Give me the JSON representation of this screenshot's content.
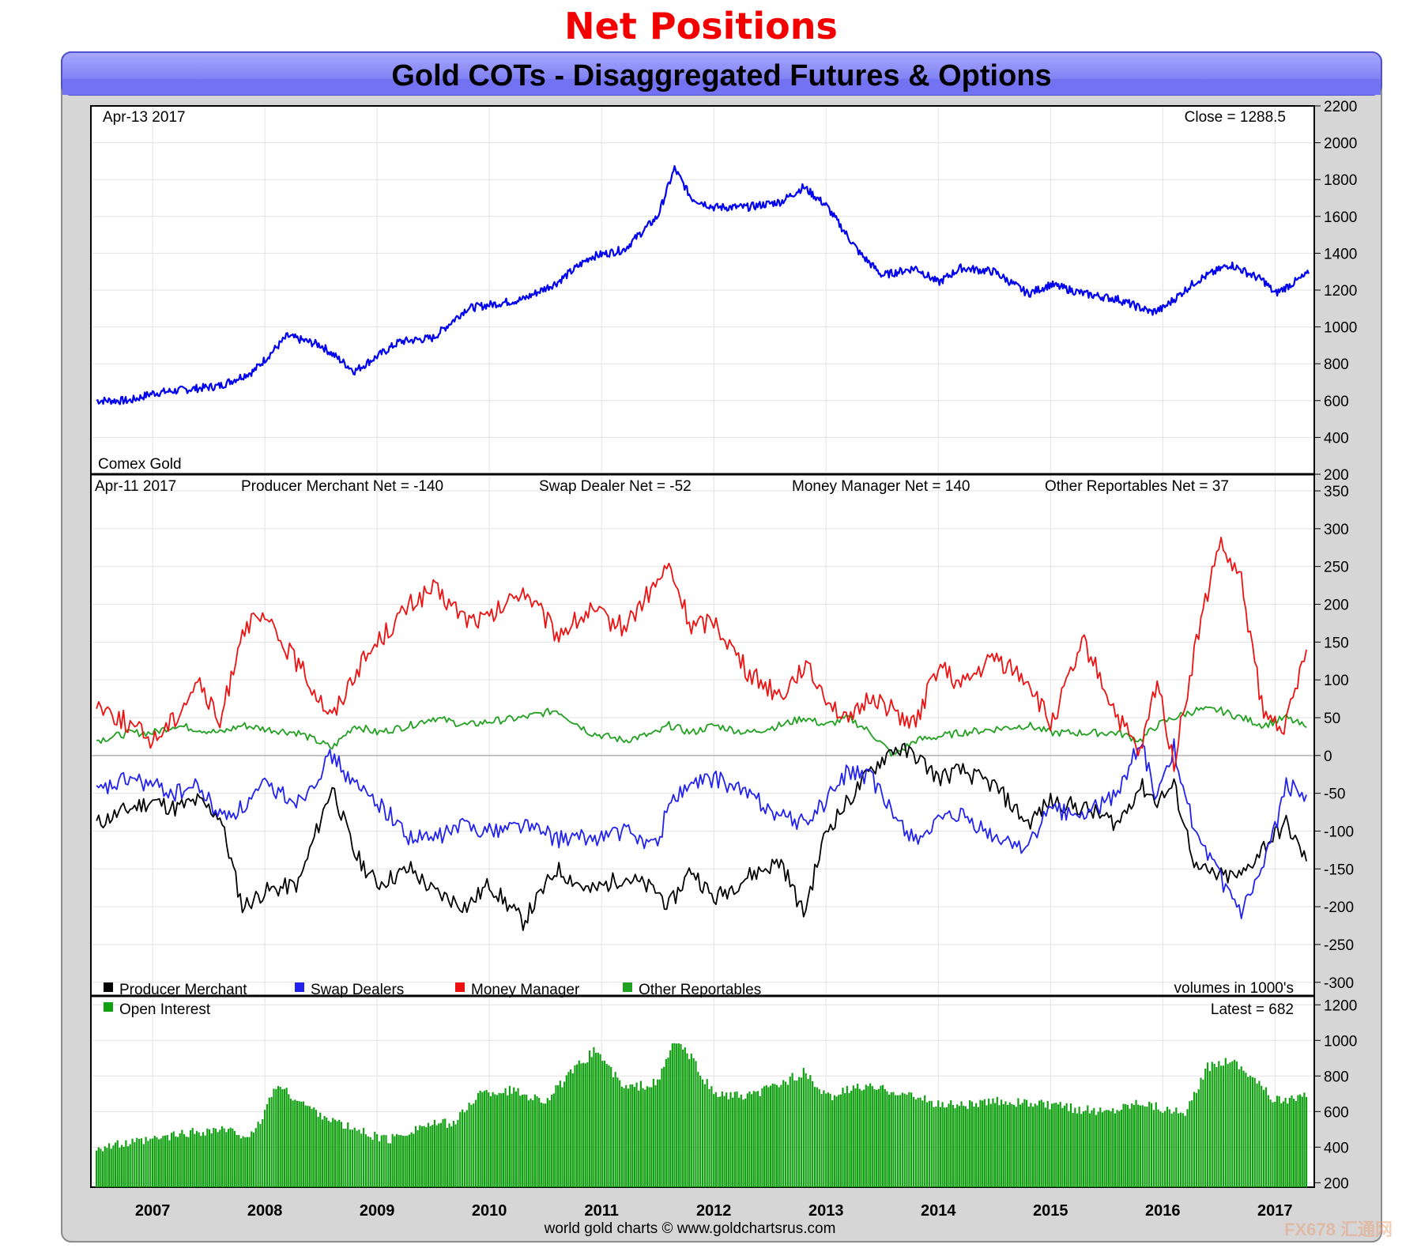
{
  "heading": "Net Positions",
  "banner_title": "Gold COTs - Disaggregated Futures & Options",
  "footer": "world gold charts © www.goldchartsrus.com",
  "watermark": "FX678 汇通网",
  "x_years": [
    "2007",
    "2008",
    "2009",
    "2010",
    "2011",
    "2012",
    "2013",
    "2014",
    "2015",
    "2016",
    "2017"
  ],
  "colors": {
    "price": "#0000ee",
    "producer": "#000000",
    "swap": "#2222ee",
    "money": "#ee1111",
    "other": "#22a022",
    "oi": "#11a011",
    "banner": "#7a7af5"
  },
  "price_panel": {
    "date": "Apr-13  2017",
    "close_label": "Close = 1288.5",
    "name": "Comex Gold",
    "y_ticks": [
      2200,
      2000,
      1800,
      1600,
      1400,
      1200,
      1000,
      800,
      600,
      400,
      200
    ]
  },
  "net_panel": {
    "date": "Apr-11  2017",
    "producer_label": "Producer Merchant Net = -140",
    "swap_label": "Swap Dealer Net = -52",
    "money_label": "Money Manager Net = 140",
    "other_label": "Other Reportables Net = 37",
    "legend": [
      "Producer Merchant",
      "Swap Dealers",
      "Money Manager",
      "Other Reportables"
    ],
    "units": "volumes in 1000's",
    "y_ticks": [
      350,
      300,
      250,
      200,
      150,
      100,
      50,
      0,
      -50,
      -100,
      -150,
      -200,
      -250,
      -300
    ]
  },
  "oi_panel": {
    "legend": "Open Interest",
    "latest_label": "Latest = 682",
    "y_ticks": [
      1200,
      1000,
      800,
      600,
      400,
      200
    ]
  },
  "chart_data": [
    {
      "type": "line",
      "title": "Comex Gold",
      "series": [
        {
          "name": "Comex Gold",
          "x": [
            2006.5,
            2006.8,
            2007.0,
            2007.3,
            2007.6,
            2007.9,
            2008.2,
            2008.5,
            2008.8,
            2008.9,
            2009.2,
            2009.5,
            2009.8,
            2010.0,
            2010.3,
            2010.6,
            2010.9,
            2011.2,
            2011.5,
            2011.65,
            2011.8,
            2012.0,
            2012.3,
            2012.6,
            2012.8,
            2013.0,
            2013.3,
            2013.5,
            2013.8,
            2014.0,
            2014.2,
            2014.5,
            2014.8,
            2015.0,
            2015.3,
            2015.6,
            2015.9,
            2016.0,
            2016.3,
            2016.6,
            2016.9,
            2017.0,
            2017.3
          ],
          "values": [
            600,
            600,
            640,
            660,
            680,
            760,
            950,
            900,
            760,
            800,
            920,
            940,
            1100,
            1120,
            1150,
            1240,
            1380,
            1420,
            1600,
            1860,
            1700,
            1650,
            1650,
            1680,
            1760,
            1660,
            1400,
            1280,
            1320,
            1240,
            1320,
            1300,
            1180,
            1230,
            1180,
            1150,
            1080,
            1100,
            1250,
            1340,
            1250,
            1180,
            1288.5
          ]
        }
      ],
      "ylim": [
        200,
        2200
      ]
    },
    {
      "type": "line",
      "title": "",
      "x": [
        2006.5,
        2006.8,
        2007.0,
        2007.2,
        2007.4,
        2007.6,
        2007.8,
        2008.0,
        2008.3,
        2008.6,
        2008.8,
        2009.0,
        2009.3,
        2009.5,
        2009.8,
        2010.0,
        2010.3,
        2010.6,
        2010.9,
        2011.2,
        2011.5,
        2011.6,
        2011.8,
        2012.0,
        2012.3,
        2012.6,
        2012.8,
        2013.0,
        2013.2,
        2013.4,
        2013.6,
        2013.8,
        2014.0,
        2014.2,
        2014.5,
        2014.8,
        2015.0,
        2015.3,
        2015.6,
        2015.8,
        2015.95,
        2016.1,
        2016.3,
        2016.5,
        2016.7,
        2016.9,
        2017.1,
        2017.28
      ],
      "series": [
        {
          "name": "Producer Merchant",
          "values": [
            -90,
            -70,
            -60,
            -70,
            -60,
            -80,
            -200,
            -180,
            -170,
            -40,
            -130,
            -170,
            -150,
            -180,
            -200,
            -170,
            -220,
            -150,
            -180,
            -160,
            -180,
            -200,
            -150,
            -190,
            -160,
            -140,
            -210,
            -100,
            -60,
            -20,
            10,
            0,
            -30,
            -20,
            -40,
            -90,
            -60,
            -70,
            -90,
            -40,
            -60,
            -40,
            -150,
            -160,
            -160,
            -120,
            -90,
            -140
          ]
        },
        {
          "name": "Swap Dealers",
          "values": [
            -50,
            -30,
            -40,
            -50,
            -40,
            -80,
            -70,
            -40,
            -60,
            0,
            -40,
            -60,
            -110,
            -110,
            -90,
            -100,
            -90,
            -110,
            -110,
            -100,
            -120,
            -60,
            -40,
            -30,
            -50,
            -80,
            -90,
            -60,
            -20,
            -30,
            -80,
            -110,
            -90,
            -80,
            -110,
            -120,
            -70,
            -80,
            -50,
            20,
            -60,
            10,
            -110,
            -160,
            -210,
            -150,
            -40,
            -52
          ]
        },
        {
          "name": "Money Manager",
          "values": [
            70,
            40,
            20,
            50,
            100,
            40,
            170,
            180,
            120,
            50,
            110,
            150,
            200,
            220,
            180,
            180,
            220,
            160,
            190,
            170,
            230,
            250,
            170,
            180,
            110,
            80,
            120,
            80,
            40,
            80,
            60,
            40,
            120,
            90,
            130,
            100,
            40,
            150,
            50,
            0,
            100,
            -10,
            150,
            280,
            230,
            50,
            40,
            140
          ]
        },
        {
          "name": "Other Reportables",
          "values": [
            20,
            30,
            30,
            40,
            35,
            30,
            40,
            35,
            30,
            10,
            40,
            30,
            40,
            50,
            40,
            45,
            50,
            60,
            30,
            20,
            30,
            40,
            30,
            40,
            30,
            40,
            50,
            40,
            50,
            30,
            0,
            20,
            25,
            30,
            35,
            40,
            30,
            30,
            30,
            20,
            40,
            50,
            60,
            60,
            50,
            40,
            50,
            37
          ]
        }
      ],
      "ylim": [
        -300,
        350
      ]
    },
    {
      "type": "bar",
      "title": "",
      "series": [
        {
          "name": "Open Interest",
          "x": [
            2006.5,
            2006.8,
            2007.0,
            2007.3,
            2007.6,
            2007.9,
            2008.1,
            2008.4,
            2008.7,
            2008.9,
            2009.1,
            2009.4,
            2009.7,
            2009.9,
            2010.2,
            2010.5,
            2010.8,
            2010.95,
            2011.2,
            2011.5,
            2011.65,
            2011.8,
            2012.0,
            2012.3,
            2012.6,
            2012.8,
            2013.0,
            2013.3,
            2013.6,
            2013.8,
            2014.0,
            2014.3,
            2014.6,
            2014.9,
            2015.2,
            2015.5,
            2015.8,
            2016.0,
            2016.2,
            2016.4,
            2016.6,
            2016.8,
            2017.0,
            2017.28
          ],
          "values": [
            400,
            420,
            440,
            480,
            500,
            460,
            750,
            620,
            520,
            480,
            440,
            520,
            540,
            700,
            720,
            660,
            860,
            950,
            730,
            760,
            1000,
            900,
            700,
            680,
            760,
            820,
            680,
            740,
            720,
            680,
            640,
            640,
            660,
            640,
            620,
            600,
            660,
            620,
            580,
            850,
            900,
            800,
            660,
            682
          ]
        }
      ],
      "ylim": [
        200,
        1200
      ]
    }
  ]
}
